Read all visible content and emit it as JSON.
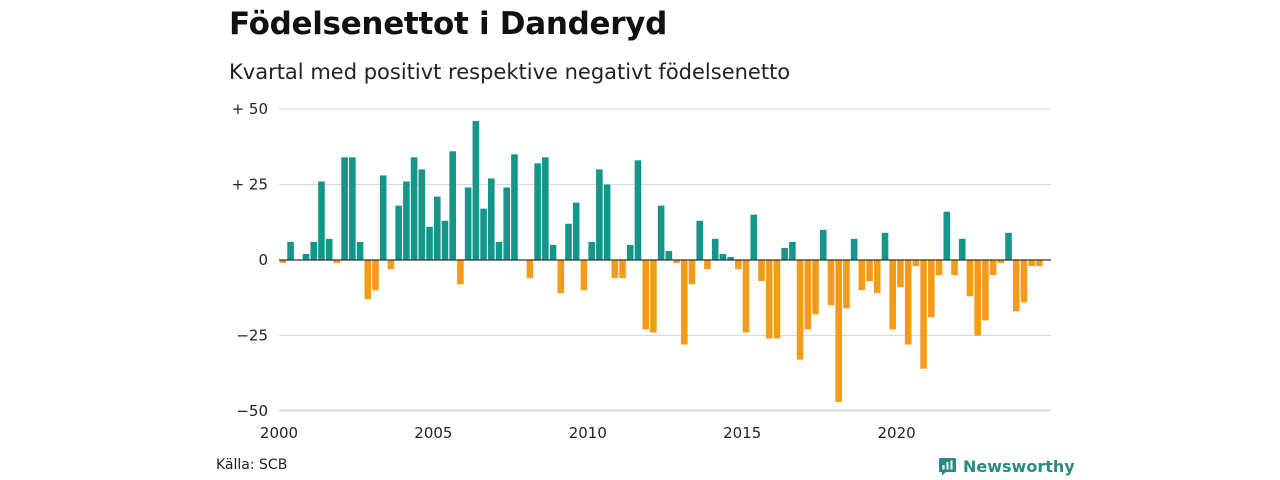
{
  "title": "Födelsenettot i Danderyd",
  "subtitle": "Kvartal med positivt respektive negativt födelsenetto",
  "source": "Källa: SCB",
  "brand": {
    "name": "Newsworthy",
    "icon": "newsworthy-logo-icon"
  },
  "colors": {
    "positive": "#14968a",
    "negative": "#f39c1b",
    "grid": "#d9d9d9",
    "zero": "#333333"
  },
  "chart_data": {
    "type": "bar",
    "ylim": [
      -50,
      50
    ],
    "y_ticks": [
      {
        "value": 50,
        "label": "+ 50"
      },
      {
        "value": 25,
        "label": "+ 25"
      },
      {
        "value": 0,
        "label": "0"
      },
      {
        "value": -25,
        "label": "−25"
      },
      {
        "value": -50,
        "label": "−50"
      }
    ],
    "x_ticks": [
      2000,
      2005,
      2010,
      2015,
      2020
    ],
    "x_start": 2000,
    "periods_per_year": 4,
    "grid": true,
    "legend": "none",
    "values": [
      -1,
      6,
      0,
      2,
      6,
      26,
      7,
      -1,
      34,
      34,
      6,
      -13,
      -10,
      28,
      -3,
      18,
      26,
      34,
      30,
      11,
      21,
      13,
      36,
      -8,
      24,
      46,
      17,
      27,
      6,
      24,
      35,
      0,
      -6,
      32,
      34,
      5,
      -11,
      12,
      19,
      -10,
      6,
      30,
      25,
      -6,
      -6,
      5,
      33,
      -23,
      -24,
      18,
      3,
      -1,
      -28,
      -8,
      13,
      -3,
      7,
      2,
      1,
      -3,
      -24,
      15,
      -7,
      -26,
      -26,
      4,
      6,
      -33,
      -23,
      -18,
      10,
      -15,
      -47,
      -16,
      7,
      -10,
      -7,
      -11,
      9,
      -23,
      -9,
      -28,
      -2,
      -36,
      -19,
      -5,
      16,
      -5,
      7,
      -12,
      -25,
      -20,
      -5,
      -1,
      9,
      -17,
      -14,
      -2,
      -2
    ]
  }
}
